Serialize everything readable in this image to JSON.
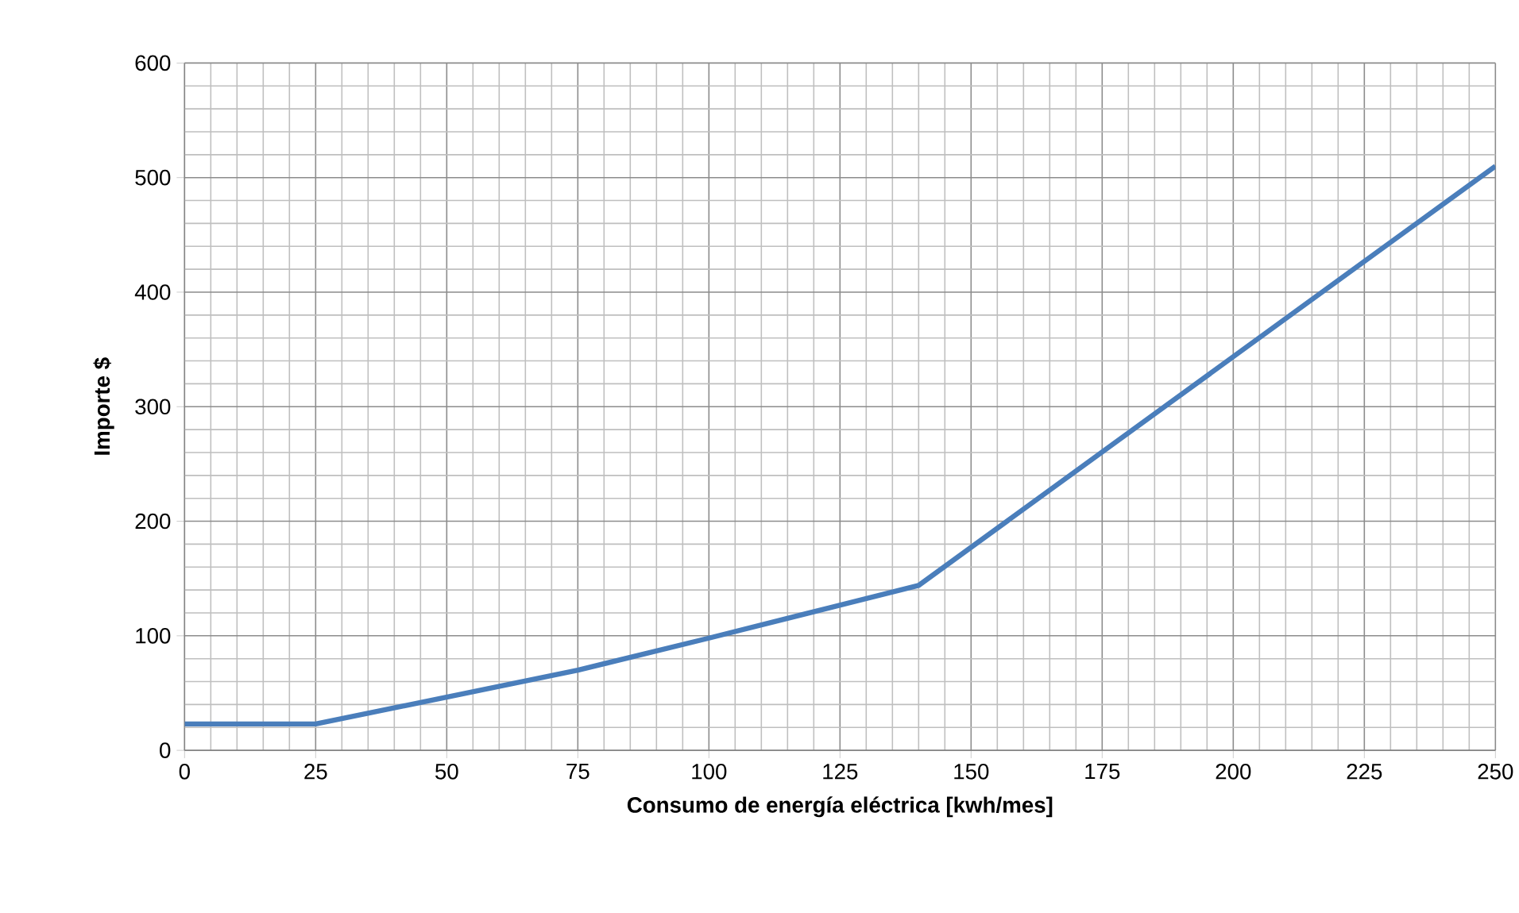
{
  "chart_data": {
    "type": "line",
    "xlabel": "Consumo de energía eléctrica [kwh/mes]",
    "ylabel": "Importe $",
    "x": [
      0,
      25,
      75,
      100,
      140,
      250
    ],
    "series": [
      {
        "color": "#4a7ebb",
        "values": [
          23,
          23,
          70,
          98,
          144,
          510
        ]
      }
    ],
    "xlim": [
      0,
      250
    ],
    "xticks": [
      0,
      25,
      50,
      75,
      100,
      125,
      150,
      175,
      200,
      225,
      250
    ],
    "ylim": [
      0,
      600
    ],
    "yticks": [
      0,
      100,
      200,
      300,
      400,
      500,
      600
    ],
    "grid": true,
    "marker": "none",
    "line_style": "solid"
  }
}
